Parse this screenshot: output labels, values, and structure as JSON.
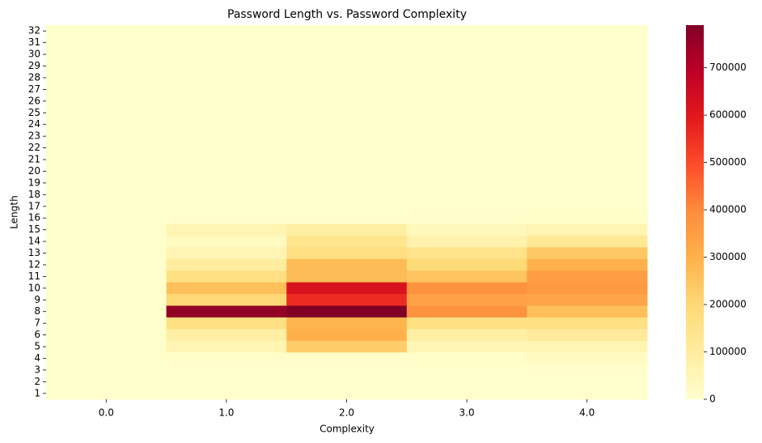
{
  "chart_data": {
    "type": "heatmap",
    "title": "Password Length vs. Password Complexity",
    "x_label": "Complexity",
    "y_label": "Length",
    "categories": [
      "0.0",
      "1.0",
      "2.0",
      "3.0",
      "4.0"
    ],
    "y_categories": [
      "32",
      "31",
      "30",
      "29",
      "28",
      "27",
      "26",
      "25",
      "24",
      "23",
      "22",
      "21",
      "20",
      "19",
      "18",
      "17",
      "16",
      "15",
      "14",
      "13",
      "12",
      "11",
      "10",
      "9",
      "8",
      "7",
      "6",
      "5",
      "4",
      "3",
      "2",
      "1"
    ],
    "values": [
      [
        0,
        0,
        0,
        0,
        0
      ],
      [
        0,
        0,
        0,
        0,
        0
      ],
      [
        0,
        0,
        0,
        0,
        0
      ],
      [
        0,
        0,
        0,
        0,
        0
      ],
      [
        0,
        0,
        0,
        0,
        0
      ],
      [
        0,
        0,
        0,
        0,
        0
      ],
      [
        0,
        0,
        0,
        0,
        0
      ],
      [
        0,
        0,
        0,
        0,
        0
      ],
      [
        0,
        0,
        0,
        0,
        0
      ],
      [
        0,
        0,
        0,
        0,
        0
      ],
      [
        0,
        0,
        0,
        0,
        0
      ],
      [
        0,
        0,
        0,
        0,
        0
      ],
      [
        0,
        0,
        0,
        0,
        0
      ],
      [
        0,
        0,
        0,
        0,
        0
      ],
      [
        0,
        0,
        0,
        0,
        0
      ],
      [
        0,
        0,
        0,
        0,
        0
      ],
      [
        0,
        0,
        0,
        5000,
        10000
      ],
      [
        0,
        60000,
        90000,
        40000,
        60000
      ],
      [
        0,
        30000,
        140000,
        70000,
        120000
      ],
      [
        0,
        60000,
        170000,
        150000,
        240000
      ],
      [
        0,
        100000,
        270000,
        190000,
        300000
      ],
      [
        0,
        170000,
        270000,
        250000,
        350000
      ],
      [
        0,
        260000,
        620000,
        380000,
        360000
      ],
      [
        0,
        200000,
        560000,
        340000,
        330000
      ],
      [
        0,
        760000,
        790000,
        380000,
        260000
      ],
      [
        0,
        170000,
        290000,
        170000,
        170000
      ],
      [
        0,
        90000,
        300000,
        90000,
        110000
      ],
      [
        0,
        60000,
        230000,
        50000,
        60000
      ],
      [
        0,
        5000,
        5000,
        10000,
        20000
      ],
      [
        0,
        0,
        0,
        0,
        5000
      ],
      [
        0,
        0,
        0,
        0,
        0
      ],
      [
        0,
        0,
        0,
        0,
        0
      ]
    ],
    "colormap": [
      "#ffffcc",
      "#ffeda0",
      "#fed976",
      "#feb24c",
      "#fd8d3c",
      "#fc4e2a",
      "#e31a1c",
      "#bd0026",
      "#800026"
    ],
    "clim": [
      0,
      790000
    ],
    "cticks": [
      0,
      100000,
      200000,
      300000,
      400000,
      500000,
      600000,
      700000
    ]
  }
}
